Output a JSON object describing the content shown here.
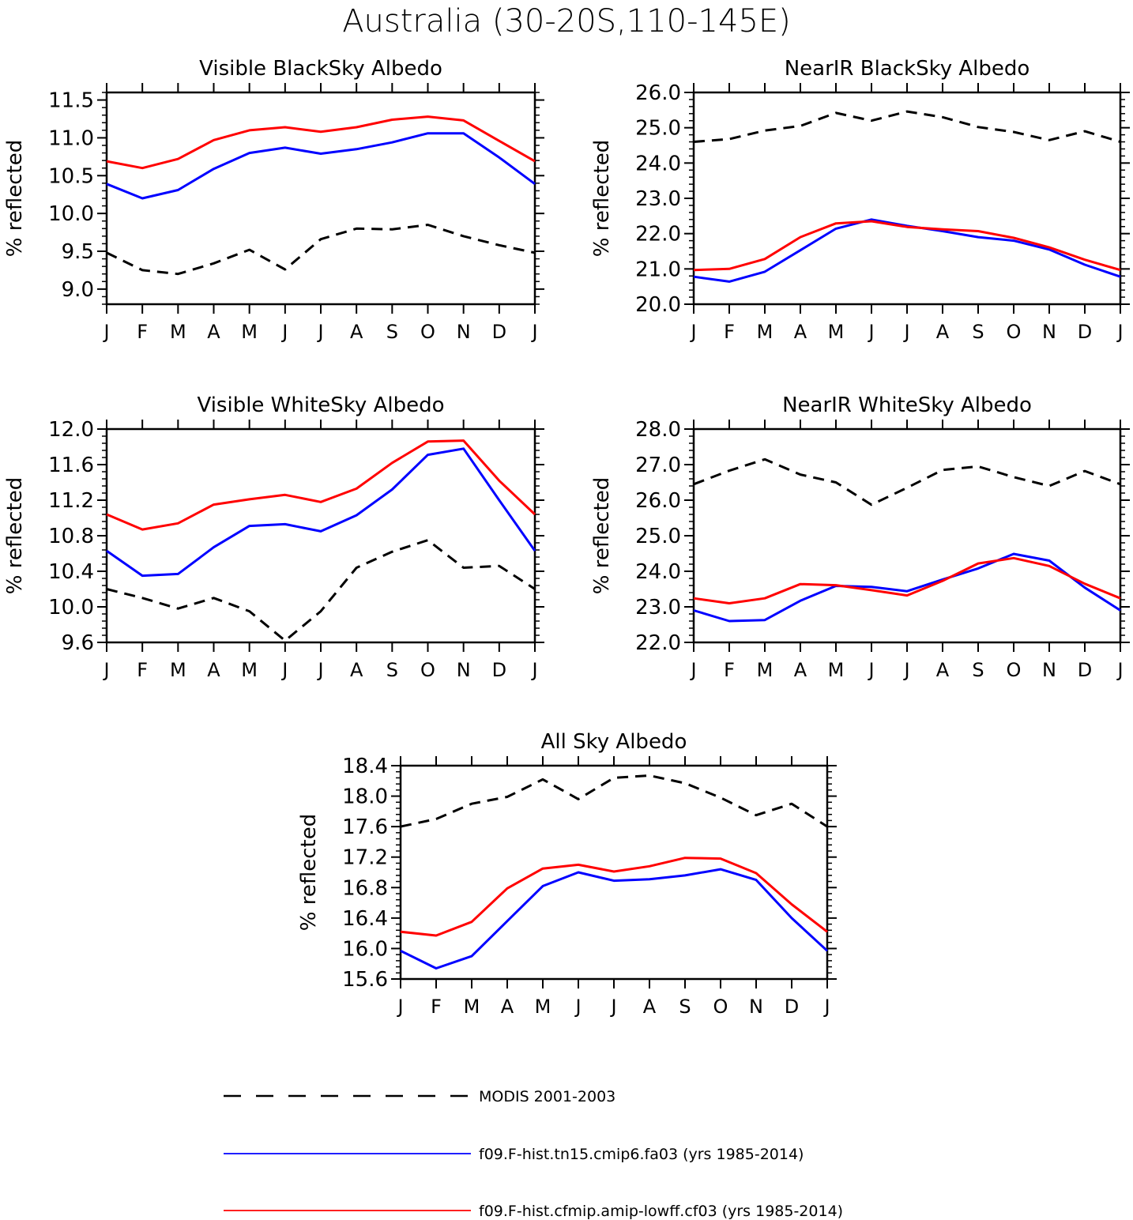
{
  "figure_title": "Australia (30-20S,110-145E)",
  "legend": {
    "position": "bottom",
    "entries": [
      {
        "label": "MODIS 2001-2003",
        "color": "#000000",
        "style": "dashed"
      },
      {
        "label": "f09.F-hist.tn15.cmip6.fa03 (yrs 1985-2014)",
        "color": "#0000ff",
        "style": "solid"
      },
      {
        "label": "f09.F-hist.cfmip.amip-lowff.cf03 (yrs 1985-2014)",
        "color": "#ff0000",
        "style": "solid"
      }
    ]
  },
  "chart_data": [
    {
      "type": "line",
      "title": "Visible BlackSky Albedo",
      "ylabel": "% reflected",
      "xlabel": "",
      "categories": [
        "J",
        "F",
        "M",
        "A",
        "M",
        "J",
        "J",
        "A",
        "S",
        "O",
        "N",
        "D",
        "J"
      ],
      "ylim": [
        8.8,
        11.6
      ],
      "yticks": [
        9.0,
        9.5,
        10.0,
        10.5,
        11.0,
        11.5
      ],
      "ydecimals": 1,
      "grid": false,
      "series": [
        {
          "name": "MODIS 2001-2003",
          "color": "#000000",
          "dash": true,
          "values": [
            9.48,
            9.25,
            9.2,
            9.34,
            9.52,
            9.26,
            9.66,
            9.8,
            9.79,
            9.85,
            9.7,
            9.58,
            9.48
          ]
        },
        {
          "name": "f09.F-hist.tn15.cmip6.fa03 (yrs 1985-2014)",
          "color": "#0000ff",
          "dash": false,
          "values": [
            10.39,
            10.2,
            10.31,
            10.59,
            10.8,
            10.87,
            10.79,
            10.85,
            10.94,
            11.06,
            11.06,
            10.74,
            10.39
          ]
        },
        {
          "name": "f09.F-hist.cfmip.amip-lowff.cf03 (yrs 1985-2014)",
          "color": "#ff0000",
          "dash": false,
          "values": [
            10.69,
            10.6,
            10.72,
            10.97,
            11.1,
            11.14,
            11.08,
            11.14,
            11.24,
            11.28,
            11.23,
            10.96,
            10.69
          ]
        }
      ]
    },
    {
      "type": "line",
      "title": "NearIR BlackSky Albedo",
      "ylabel": "% reflected",
      "xlabel": "",
      "categories": [
        "J",
        "F",
        "M",
        "A",
        "M",
        "J",
        "J",
        "A",
        "S",
        "O",
        "N",
        "D",
        "J"
      ],
      "ylim": [
        20.0,
        26.0
      ],
      "yticks": [
        20.0,
        21.0,
        22.0,
        23.0,
        24.0,
        25.0,
        26.0
      ],
      "ydecimals": 1,
      "grid": false,
      "series": [
        {
          "name": "MODIS 2001-2003",
          "color": "#000000",
          "dash": true,
          "values": [
            24.6,
            24.68,
            24.92,
            25.05,
            25.42,
            25.2,
            25.46,
            25.3,
            25.02,
            24.88,
            24.65,
            24.9,
            24.6
          ]
        },
        {
          "name": "f09.F-hist.tn15.cmip6.fa03 (yrs 1985-2014)",
          "color": "#0000ff",
          "dash": false,
          "values": [
            20.78,
            20.64,
            20.92,
            21.53,
            22.14,
            22.4,
            22.22,
            22.07,
            21.9,
            21.8,
            21.55,
            21.12,
            20.78
          ]
        },
        {
          "name": "f09.F-hist.cfmip.amip-lowff.cf03 (yrs 1985-2014)",
          "color": "#ff0000",
          "dash": false,
          "values": [
            20.97,
            21.0,
            21.28,
            21.9,
            22.29,
            22.35,
            22.19,
            22.12,
            22.07,
            21.88,
            21.61,
            21.26,
            20.97
          ]
        }
      ]
    },
    {
      "type": "line",
      "title": "Visible WhiteSky Albedo",
      "ylabel": "% reflected",
      "xlabel": "",
      "categories": [
        "J",
        "F",
        "M",
        "A",
        "M",
        "J",
        "J",
        "A",
        "S",
        "O",
        "N",
        "D",
        "J"
      ],
      "ylim": [
        9.6,
        12.0
      ],
      "yticks": [
        9.6,
        10.0,
        10.4,
        10.8,
        11.2,
        11.6,
        12.0
      ],
      "ydecimals": 1,
      "grid": false,
      "series": [
        {
          "name": "MODIS 2001-2003",
          "color": "#000000",
          "dash": true,
          "values": [
            10.2,
            10.1,
            9.98,
            10.1,
            9.95,
            9.62,
            9.95,
            10.44,
            10.62,
            10.75,
            10.44,
            10.46,
            10.2
          ]
        },
        {
          "name": "f09.F-hist.tn15.cmip6.fa03 (yrs 1985-2014)",
          "color": "#0000ff",
          "dash": false,
          "values": [
            10.63,
            10.35,
            10.37,
            10.67,
            10.91,
            10.93,
            10.85,
            11.03,
            11.32,
            11.71,
            11.78,
            11.2,
            10.63
          ]
        },
        {
          "name": "f09.F-hist.cfmip.amip-lowff.cf03 (yrs 1985-2014)",
          "color": "#ff0000",
          "dash": false,
          "values": [
            11.04,
            10.87,
            10.94,
            11.15,
            11.21,
            11.26,
            11.18,
            11.33,
            11.62,
            11.86,
            11.87,
            11.42,
            11.04
          ]
        }
      ]
    },
    {
      "type": "line",
      "title": "NearIR WhiteSky Albedo",
      "ylabel": "% reflected",
      "xlabel": "",
      "categories": [
        "J",
        "F",
        "M",
        "A",
        "M",
        "J",
        "J",
        "A",
        "S",
        "O",
        "N",
        "D",
        "J"
      ],
      "ylim": [
        22.0,
        28.0
      ],
      "yticks": [
        22.0,
        23.0,
        24.0,
        25.0,
        26.0,
        27.0,
        28.0
      ],
      "ydecimals": 1,
      "grid": false,
      "series": [
        {
          "name": "MODIS 2001-2003",
          "color": "#000000",
          "dash": true,
          "values": [
            26.45,
            26.83,
            27.15,
            26.72,
            26.5,
            25.87,
            26.35,
            26.85,
            26.95,
            26.65,
            26.4,
            26.82,
            26.45
          ]
        },
        {
          "name": "f09.F-hist.tn15.cmip6.fa03 (yrs 1985-2014)",
          "color": "#0000ff",
          "dash": false,
          "values": [
            22.9,
            22.6,
            22.63,
            23.17,
            23.59,
            23.56,
            23.44,
            23.77,
            24.08,
            24.49,
            24.3,
            23.54,
            22.9
          ]
        },
        {
          "name": "f09.F-hist.cfmip.amip-lowff.cf03 (yrs 1985-2014)",
          "color": "#ff0000",
          "dash": false,
          "values": [
            23.24,
            23.1,
            23.24,
            23.64,
            23.61,
            23.47,
            23.32,
            23.73,
            24.22,
            24.37,
            24.15,
            23.65,
            23.24
          ]
        }
      ]
    },
    {
      "type": "line",
      "title": "All Sky Albedo",
      "ylabel": "% reflected",
      "xlabel": "",
      "categories": [
        "J",
        "F",
        "M",
        "A",
        "M",
        "J",
        "J",
        "A",
        "S",
        "O",
        "N",
        "D",
        "J"
      ],
      "ylim": [
        15.6,
        18.4
      ],
      "yticks": [
        15.6,
        16.0,
        16.4,
        16.8,
        17.2,
        17.6,
        18.0,
        18.4
      ],
      "ydecimals": 1,
      "grid": false,
      "series": [
        {
          "name": "MODIS 2001-2003",
          "color": "#000000",
          "dash": true,
          "values": [
            17.6,
            17.7,
            17.9,
            17.99,
            18.22,
            17.96,
            18.24,
            18.27,
            18.17,
            17.98,
            17.75,
            17.9,
            17.6
          ]
        },
        {
          "name": "f09.F-hist.tn15.cmip6.fa03 (yrs 1985-2014)",
          "color": "#0000ff",
          "dash": false,
          "values": [
            15.97,
            15.74,
            15.9,
            16.36,
            16.82,
            17.0,
            16.89,
            16.91,
            16.96,
            17.04,
            16.9,
            16.4,
            15.97
          ]
        },
        {
          "name": "f09.F-hist.cfmip.amip-lowff.cf03 (yrs 1985-2014)",
          "color": "#ff0000",
          "dash": false,
          "values": [
            16.22,
            16.17,
            16.35,
            16.79,
            17.05,
            17.1,
            17.01,
            17.08,
            17.19,
            17.18,
            16.99,
            16.58,
            16.22
          ]
        }
      ]
    }
  ]
}
